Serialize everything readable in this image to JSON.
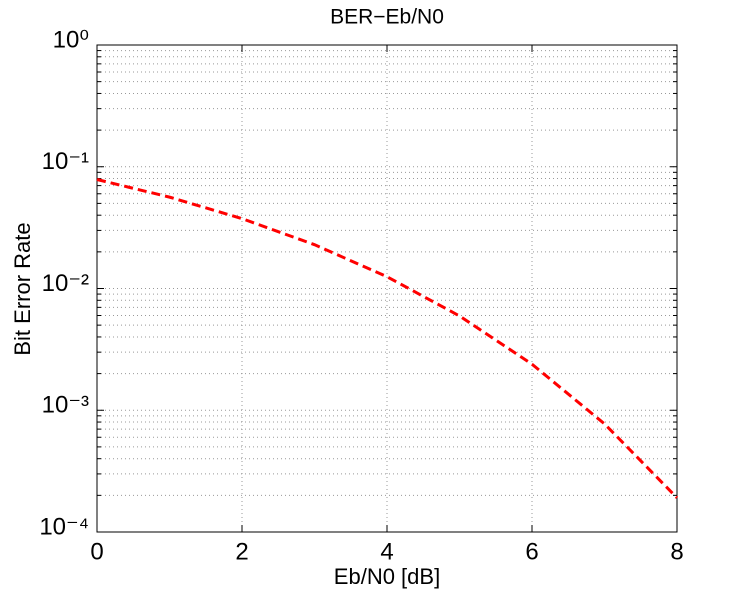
{
  "chart_data": {
    "type": "line",
    "title": "BER−Eb/N0",
    "xlabel": "Eb/N0 [dB]",
    "ylabel": "Bit Error Rate",
    "x": [
      0,
      1,
      2,
      3,
      4,
      5,
      6,
      7,
      8
    ],
    "series": [
      {
        "color": "#ff0000",
        "values": [
          0.0786,
          0.0563,
          0.0375,
          0.0229,
          0.0125,
          0.00595,
          0.00239,
          0.000773,
          0.000191
        ]
      }
    ],
    "xlim": [
      0,
      8
    ],
    "xticks": [
      0,
      2,
      4,
      6,
      8
    ],
    "ylim": [
      0.0001,
      1
    ],
    "log_y": true,
    "yticks": [
      {
        "value": 0.0001,
        "label": "10⁻⁴"
      },
      {
        "value": 0.001,
        "label": "10⁻³"
      },
      {
        "value": 0.01,
        "label": "10⁻²"
      },
      {
        "value": 0.1,
        "label": "10⁻¹"
      },
      {
        "value": 1,
        "label": "10⁰"
      }
    ],
    "yminorticks": [
      0.0002,
      0.0003,
      0.0004,
      0.0005,
      0.0006,
      0.0007,
      0.0008,
      0.0009,
      0.002,
      0.003,
      0.004,
      0.005,
      0.006,
      0.007,
      0.008,
      0.009,
      0.02,
      0.03,
      0.04,
      0.05,
      0.06,
      0.07,
      0.08,
      0.09,
      0.2,
      0.3,
      0.4,
      0.5,
      0.6,
      0.7,
      0.8,
      0.9
    ],
    "grid": true,
    "line_style": "dashed"
  }
}
